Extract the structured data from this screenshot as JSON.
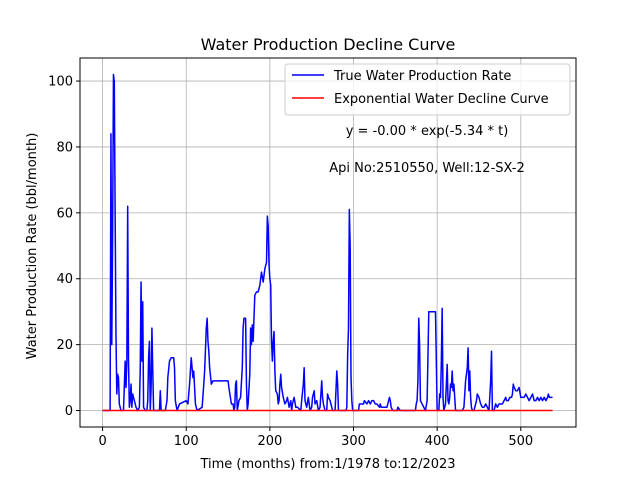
{
  "chart_data": {
    "type": "line",
    "title": "Water Production Decline Curve",
    "xlabel": "Time (months) from:1/1978 to:12/2023",
    "ylabel": "Water Production Rate (bbl/month)",
    "xlim": [
      -27,
      566
    ],
    "ylim": [
      -5,
      107
    ],
    "xticks": [
      0,
      100,
      200,
      300,
      400,
      500
    ],
    "yticks": [
      0,
      20,
      40,
      60,
      80,
      100
    ],
    "grid": true,
    "legend_position": "top-right",
    "annotations": [
      "y = -0.00 * exp(-5.34 * t)",
      "Api No:2510550, Well:12-SX-2"
    ],
    "series": [
      {
        "name": "True Water Production Rate",
        "color": "#0000ff",
        "points": [
          [
            0,
            0
          ],
          [
            9,
            0
          ],
          [
            10,
            84
          ],
          [
            11,
            20
          ],
          [
            12,
            53
          ],
          [
            13,
            102
          ],
          [
            14,
            100
          ],
          [
            15,
            60
          ],
          [
            16,
            23
          ],
          [
            17,
            5
          ],
          [
            18,
            11
          ],
          [
            19,
            10
          ],
          [
            20,
            2
          ],
          [
            22,
            0
          ],
          [
            25,
            0
          ],
          [
            27,
            15
          ],
          [
            28,
            7
          ],
          [
            29,
            15
          ],
          [
            30,
            62
          ],
          [
            31,
            15
          ],
          [
            32,
            1
          ],
          [
            33,
            3
          ],
          [
            34,
            8
          ],
          [
            35,
            1
          ],
          [
            36,
            5
          ],
          [
            38,
            3
          ],
          [
            40,
            1
          ],
          [
            42,
            0
          ],
          [
            44,
            1
          ],
          [
            45,
            12
          ],
          [
            46,
            39
          ],
          [
            47,
            15
          ],
          [
            48,
            33
          ],
          [
            49,
            1
          ],
          [
            51,
            0
          ],
          [
            53,
            0
          ],
          [
            54,
            3
          ],
          [
            55,
            16
          ],
          [
            56,
            21
          ],
          [
            57,
            0
          ],
          [
            58,
            7
          ],
          [
            59,
            25
          ],
          [
            60,
            12
          ],
          [
            61,
            0
          ],
          [
            63,
            0
          ],
          [
            68,
            0
          ],
          [
            69,
            6
          ],
          [
            70,
            0
          ],
          [
            75,
            0
          ],
          [
            77,
            3
          ],
          [
            78,
            10
          ],
          [
            80,
            15
          ],
          [
            82,
            16
          ],
          [
            85,
            16
          ],
          [
            86,
            13
          ],
          [
            87,
            3
          ],
          [
            89,
            0
          ],
          [
            92,
            2
          ],
          [
            100,
            3
          ],
          [
            102,
            2
          ],
          [
            104,
            8
          ],
          [
            106,
            16
          ],
          [
            107,
            13
          ],
          [
            108,
            10
          ],
          [
            109,
            12
          ],
          [
            111,
            2
          ],
          [
            113,
            0
          ],
          [
            119,
            1
          ],
          [
            121,
            8
          ],
          [
            122,
            12
          ],
          [
            124,
            25
          ],
          [
            125,
            28
          ],
          [
            126,
            21
          ],
          [
            127,
            18
          ],
          [
            128,
            13
          ],
          [
            130,
            8
          ],
          [
            132,
            9
          ],
          [
            140,
            9
          ],
          [
            150,
            9
          ],
          [
            151,
            7
          ],
          [
            154,
            2
          ],
          [
            156,
            2
          ],
          [
            157,
            0
          ],
          [
            158,
            1
          ],
          [
            159,
            8
          ],
          [
            160,
            9
          ],
          [
            161,
            0
          ],
          [
            163,
            3
          ],
          [
            165,
            4
          ],
          [
            167,
            13
          ],
          [
            168,
            25
          ],
          [
            169,
            28
          ],
          [
            171,
            28
          ],
          [
            172,
            8
          ],
          [
            173,
            0
          ],
          [
            174,
            2
          ],
          [
            176,
            11
          ],
          [
            177,
            25
          ],
          [
            178,
            20
          ],
          [
            179,
            26
          ],
          [
            180,
            21
          ],
          [
            182,
            35
          ],
          [
            184,
            36
          ],
          [
            186,
            36
          ],
          [
            188,
            38
          ],
          [
            190,
            42
          ],
          [
            192,
            39
          ],
          [
            194,
            43
          ],
          [
            196,
            45
          ],
          [
            197,
            59
          ],
          [
            198,
            56
          ],
          [
            199,
            44
          ],
          [
            200,
            40
          ],
          [
            201,
            38
          ],
          [
            202,
            21
          ],
          [
            203,
            15
          ],
          [
            204,
            21
          ],
          [
            205,
            24
          ],
          [
            206,
            12
          ],
          [
            207,
            6
          ],
          [
            209,
            5
          ],
          [
            210,
            2
          ],
          [
            211,
            3
          ],
          [
            212,
            8
          ],
          [
            213,
            11
          ],
          [
            214,
            7
          ],
          [
            216,
            4
          ],
          [
            218,
            2
          ],
          [
            220,
            3
          ],
          [
            221,
            4
          ],
          [
            223,
            1
          ],
          [
            224,
            2
          ],
          [
            225,
            3
          ],
          [
            226,
            0
          ],
          [
            227,
            2
          ],
          [
            229,
            4
          ],
          [
            231,
            1
          ],
          [
            233,
            1
          ],
          [
            237,
            0
          ],
          [
            238,
            3
          ],
          [
            240,
            8
          ],
          [
            241,
            13
          ],
          [
            242,
            3
          ],
          [
            244,
            1
          ],
          [
            246,
            4
          ],
          [
            248,
            0
          ],
          [
            250,
            1
          ],
          [
            251,
            4
          ],
          [
            253,
            6
          ],
          [
            254,
            2
          ],
          [
            256,
            3
          ],
          [
            258,
            0
          ],
          [
            260,
            1
          ],
          [
            262,
            9
          ],
          [
            263,
            4
          ],
          [
            264,
            2
          ],
          [
            266,
            0
          ],
          [
            268,
            0
          ],
          [
            269,
            5
          ],
          [
            270,
            4
          ],
          [
            272,
            3
          ],
          [
            275,
            0
          ],
          [
            278,
            0
          ],
          [
            279,
            6
          ],
          [
            280,
            12
          ],
          [
            281,
            8
          ],
          [
            282,
            0
          ],
          [
            285,
            0
          ],
          [
            288,
            0
          ],
          [
            291,
            0
          ],
          [
            292,
            1
          ],
          [
            293,
            17
          ],
          [
            294,
            25
          ],
          [
            295,
            61
          ],
          [
            296,
            50
          ],
          [
            297,
            10
          ],
          [
            298,
            3
          ],
          [
            299,
            0
          ],
          [
            302,
            0
          ],
          [
            306,
            0
          ],
          [
            307,
            2
          ],
          [
            309,
            2
          ],
          [
            312,
            2
          ],
          [
            313,
            3
          ],
          [
            316,
            2
          ],
          [
            318,
            3
          ],
          [
            320,
            2
          ],
          [
            322,
            3
          ],
          [
            324,
            3
          ],
          [
            326,
            2
          ],
          [
            328,
            2
          ],
          [
            331,
            1
          ],
          [
            332,
            2
          ],
          [
            333,
            1
          ],
          [
            340,
            1
          ],
          [
            341,
            2
          ],
          [
            343,
            4
          ],
          [
            344,
            3
          ],
          [
            345,
            1
          ],
          [
            347,
            0
          ],
          [
            352,
            0
          ],
          [
            353,
            1
          ],
          [
            356,
            0
          ],
          [
            360,
            0
          ],
          [
            368,
            0
          ],
          [
            372,
            0
          ],
          [
            374,
            0
          ],
          [
            375,
            2
          ],
          [
            376,
            3
          ],
          [
            377,
            9
          ],
          [
            378,
            28
          ],
          [
            379,
            20
          ],
          [
            380,
            3
          ],
          [
            382,
            2
          ],
          [
            384,
            1
          ],
          [
            386,
            0
          ],
          [
            388,
            3
          ],
          [
            390,
            30
          ],
          [
            392,
            30
          ],
          [
            398,
            30
          ],
          [
            399,
            15
          ],
          [
            400,
            0
          ],
          [
            402,
            0
          ],
          [
            403,
            5
          ],
          [
            404,
            4
          ],
          [
            405,
            15
          ],
          [
            406,
            31
          ],
          [
            407,
            4
          ],
          [
            408,
            0
          ],
          [
            410,
            2
          ],
          [
            411,
            8
          ],
          [
            412,
            14
          ],
          [
            413,
            3
          ],
          [
            414,
            2
          ],
          [
            415,
            4
          ],
          [
            416,
            8
          ],
          [
            417,
            7
          ],
          [
            418,
            12
          ],
          [
            419,
            6
          ],
          [
            420,
            8
          ],
          [
            421,
            4
          ],
          [
            422,
            0
          ],
          [
            425,
            0
          ],
          [
            430,
            0
          ],
          [
            432,
            1
          ],
          [
            433,
            5
          ],
          [
            434,
            9
          ],
          [
            435,
            11
          ],
          [
            436,
            13
          ],
          [
            437,
            19
          ],
          [
            438,
            6
          ],
          [
            439,
            12
          ],
          [
            440,
            4
          ],
          [
            441,
            1
          ],
          [
            442,
            0
          ],
          [
            444,
            0
          ],
          [
            446,
            2
          ],
          [
            447,
            3
          ],
          [
            448,
            5
          ],
          [
            450,
            4
          ],
          [
            452,
            2
          ],
          [
            454,
            1
          ],
          [
            456,
            1
          ],
          [
            458,
            2
          ],
          [
            460,
            1
          ],
          [
            462,
            0
          ],
          [
            464,
            9
          ],
          [
            465,
            18
          ],
          [
            466,
            0
          ],
          [
            468,
            0
          ],
          [
            470,
            2
          ],
          [
            472,
            1
          ],
          [
            474,
            2
          ],
          [
            476,
            2
          ],
          [
            478,
            2
          ],
          [
            480,
            3
          ],
          [
            482,
            4
          ],
          [
            483,
            3
          ],
          [
            485,
            3
          ],
          [
            487,
            4
          ],
          [
            489,
            4
          ],
          [
            490,
            5
          ],
          [
            491,
            8
          ],
          [
            492,
            7
          ],
          [
            494,
            6
          ],
          [
            496,
            6
          ],
          [
            498,
            7
          ],
          [
            500,
            4
          ],
          [
            502,
            4
          ],
          [
            504,
            4
          ],
          [
            506,
            5
          ],
          [
            508,
            4
          ],
          [
            510,
            3
          ],
          [
            512,
            4
          ],
          [
            514,
            5
          ],
          [
            516,
            3
          ],
          [
            518,
            3
          ],
          [
            520,
            4
          ],
          [
            522,
            3
          ],
          [
            524,
            4
          ],
          [
            526,
            3
          ],
          [
            528,
            4
          ],
          [
            530,
            3
          ],
          [
            532,
            4
          ],
          [
            533,
            5
          ],
          [
            534,
            4
          ],
          [
            536,
            4
          ],
          [
            538,
            4
          ]
        ]
      },
      {
        "name": "Exponential Water Decline Curve",
        "color": "#ff0000",
        "points": [
          [
            0,
            0
          ],
          [
            538,
            0
          ]
        ]
      }
    ]
  }
}
